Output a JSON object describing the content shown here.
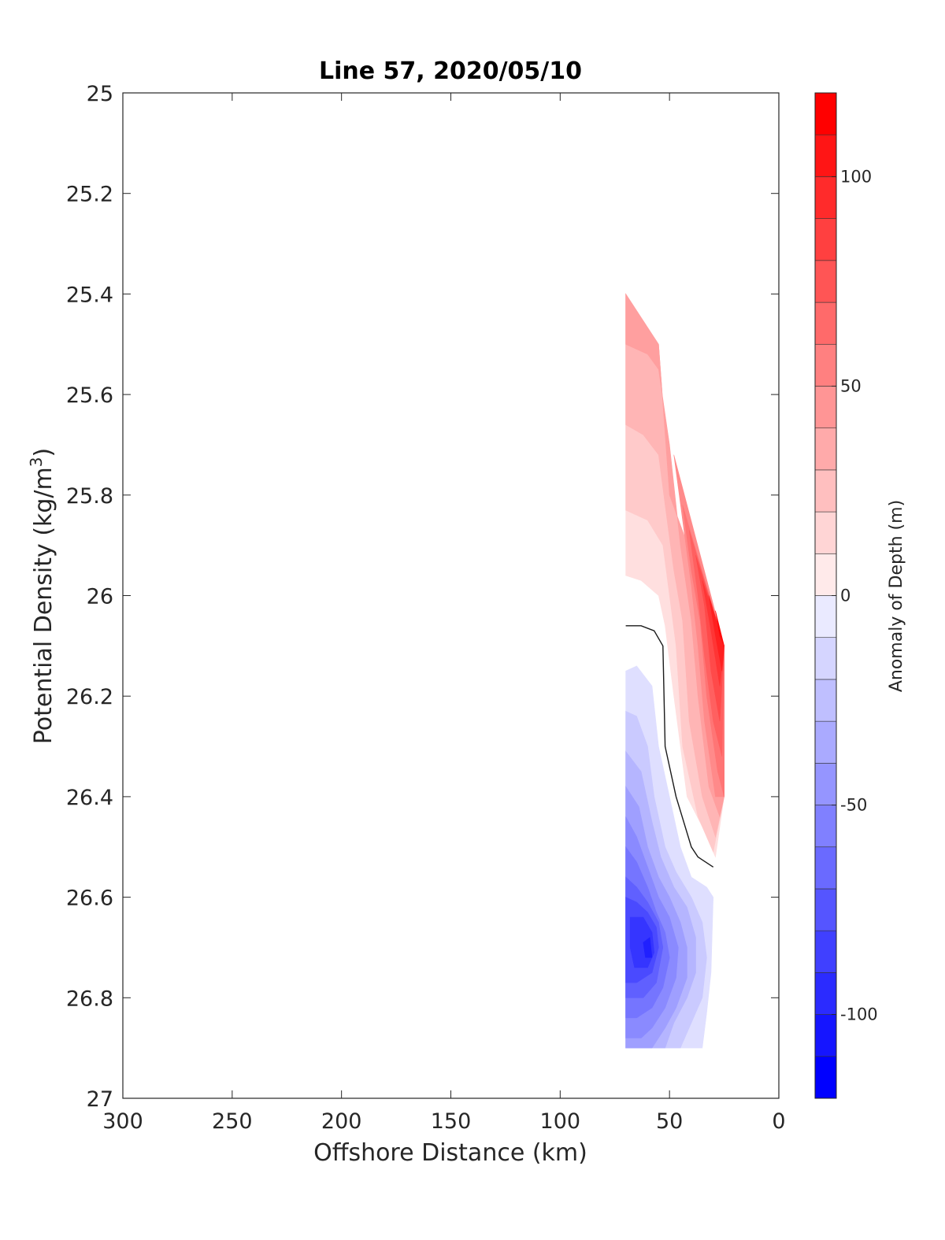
{
  "chart_data": {
    "type": "heatmap",
    "title": "Line 57, 2020/05/10",
    "xlabel": "Offshore Distance (km)",
    "ylabel_main": "Potential Density (kg/m",
    "ylabel_sup": "3",
    "ylabel_close": ")",
    "xlim": [
      300,
      0
    ],
    "ylim": [
      27,
      25
    ],
    "x_ticks": [
      300,
      250,
      200,
      150,
      100,
      50,
      0
    ],
    "x_tick_labels": [
      "300",
      "250",
      "200",
      "150",
      "100",
      "50",
      "0"
    ],
    "y_ticks": [
      25,
      25.2,
      25.4,
      25.6,
      25.8,
      26,
      26.2,
      26.4,
      26.6,
      26.8,
      27
    ],
    "y_tick_labels": [
      "25",
      "25.2",
      "25.4",
      "25.6",
      "25.8",
      "26",
      "26.2",
      "26.4",
      "26.6",
      "26.8",
      "27"
    ],
    "colorbar": {
      "label": "Anomaly of Depth (m)",
      "range": [
        -120,
        120
      ],
      "step": 10,
      "ticks": [
        100,
        50,
        0,
        -50,
        -100
      ],
      "tick_labels": [
        "100",
        "50",
        "0",
        "-50",
        "-100"
      ],
      "color_min": "#0000ff",
      "color_mid": "#ffffff",
      "color_max": "#ff0000"
    },
    "grid": false,
    "zero_contour": [
      [
        70,
        26.06
      ],
      [
        63,
        26.06
      ],
      [
        57,
        26.07
      ],
      [
        53,
        26.1
      ],
      [
        52,
        26.3
      ],
      [
        47,
        26.4
      ],
      [
        40,
        26.5
      ],
      [
        37,
        26.52
      ],
      [
        30,
        26.54
      ]
    ],
    "contour_regions": [
      {
        "value": 10,
        "points": [
          [
            70,
            25.4
          ],
          [
            70,
            25.96
          ],
          [
            63,
            25.97
          ],
          [
            55,
            26.0
          ],
          [
            52,
            26.06
          ],
          [
            48,
            26.2
          ],
          [
            42,
            26.4
          ],
          [
            35,
            26.46
          ],
          [
            29,
            26.52
          ],
          [
            25,
            26.4
          ],
          [
            25,
            26.1
          ],
          [
            50,
            25.8
          ],
          [
            55,
            25.5
          ],
          [
            70,
            25.4
          ]
        ]
      },
      {
        "value": 20,
        "points": [
          [
            70,
            25.4
          ],
          [
            70,
            25.83
          ],
          [
            60,
            25.85
          ],
          [
            53,
            25.9
          ],
          [
            50,
            26.0
          ],
          [
            47,
            26.1
          ],
          [
            44,
            26.3
          ],
          [
            37,
            26.44
          ],
          [
            30,
            26.51
          ],
          [
            25,
            26.4
          ],
          [
            25,
            26.1
          ],
          [
            50,
            25.8
          ],
          [
            55,
            25.5
          ],
          [
            70,
            25.4
          ]
        ]
      },
      {
        "value": 30,
        "points": [
          [
            70,
            25.4
          ],
          [
            70,
            25.66
          ],
          [
            62,
            25.68
          ],
          [
            55,
            25.72
          ],
          [
            52,
            25.82
          ],
          [
            48,
            25.95
          ],
          [
            44,
            26.05
          ],
          [
            41,
            26.25
          ],
          [
            35,
            26.4
          ],
          [
            29,
            26.48
          ],
          [
            25,
            26.4
          ],
          [
            25,
            26.1
          ],
          [
            50,
            25.8
          ],
          [
            55,
            25.5
          ],
          [
            70,
            25.4
          ]
        ]
      },
      {
        "value": 40,
        "points": [
          [
            70,
            25.4
          ],
          [
            70,
            25.5
          ],
          [
            60,
            25.52
          ],
          [
            55,
            25.55
          ],
          [
            50,
            25.7
          ],
          [
            45,
            25.9
          ],
          [
            40,
            26.05
          ],
          [
            37,
            26.2
          ],
          [
            32,
            26.38
          ],
          [
            27,
            26.44
          ],
          [
            25,
            26.4
          ],
          [
            25,
            26.1
          ],
          [
            50,
            25.8
          ],
          [
            55,
            25.5
          ],
          [
            70,
            25.4
          ]
        ]
      },
      {
        "value": 50,
        "points": [
          [
            48,
            25.72
          ],
          [
            44,
            25.85
          ],
          [
            40,
            25.98
          ],
          [
            37,
            26.1
          ],
          [
            34,
            26.25
          ],
          [
            29,
            26.4
          ],
          [
            25,
            26.4
          ],
          [
            25,
            26.1
          ],
          [
            48,
            25.72
          ]
        ]
      },
      {
        "value": 60,
        "points": [
          [
            44,
            25.82
          ],
          [
            40,
            25.95
          ],
          [
            36,
            26.05
          ],
          [
            33,
            26.2
          ],
          [
            28,
            26.35
          ],
          [
            25,
            26.4
          ],
          [
            25,
            26.1
          ],
          [
            44,
            25.82
          ]
        ]
      },
      {
        "value": 70,
        "points": [
          [
            41,
            25.87
          ],
          [
            37,
            26.0
          ],
          [
            34,
            26.12
          ],
          [
            30,
            26.25
          ],
          [
            26,
            26.32
          ],
          [
            25,
            26.1
          ],
          [
            41,
            25.87
          ]
        ]
      },
      {
        "value": 80,
        "points": [
          [
            38,
            25.92
          ],
          [
            34,
            26.02
          ],
          [
            31,
            26.15
          ],
          [
            27,
            26.25
          ],
          [
            25,
            26.1
          ],
          [
            38,
            25.92
          ]
        ]
      },
      {
        "value": 90,
        "points": [
          [
            35,
            25.97
          ],
          [
            31,
            26.07
          ],
          [
            27,
            26.18
          ],
          [
            25,
            26.1
          ],
          [
            35,
            25.97
          ]
        ]
      },
      {
        "value": 100,
        "points": [
          [
            32,
            26.0
          ],
          [
            29,
            26.08
          ],
          [
            26,
            26.15
          ],
          [
            25,
            26.1
          ],
          [
            32,
            26.0
          ]
        ]
      },
      {
        "value": 110,
        "points": [
          [
            29,
            26.03
          ],
          [
            27,
            26.08
          ],
          [
            25,
            26.1
          ],
          [
            29,
            26.03
          ]
        ]
      },
      {
        "value": -10,
        "points": [
          [
            70,
            26.15
          ],
          [
            65,
            26.14
          ],
          [
            58,
            26.18
          ],
          [
            55,
            26.3
          ],
          [
            50,
            26.4
          ],
          [
            45,
            26.5
          ],
          [
            40,
            26.56
          ],
          [
            33,
            26.58
          ],
          [
            30,
            26.6
          ],
          [
            31,
            26.75
          ],
          [
            33,
            26.83
          ],
          [
            35,
            26.9
          ],
          [
            70,
            26.9
          ],
          [
            70,
            26.15
          ]
        ]
      },
      {
        "value": -20,
        "points": [
          [
            70,
            26.23
          ],
          [
            65,
            26.24
          ],
          [
            60,
            26.3
          ],
          [
            57,
            26.4
          ],
          [
            52,
            26.5
          ],
          [
            47,
            26.55
          ],
          [
            40,
            26.6
          ],
          [
            35,
            26.65
          ],
          [
            33,
            26.72
          ],
          [
            35,
            26.8
          ],
          [
            40,
            26.85
          ],
          [
            45,
            26.9
          ],
          [
            70,
            26.9
          ],
          [
            70,
            26.23
          ]
        ]
      },
      {
        "value": -30,
        "points": [
          [
            70,
            26.31
          ],
          [
            63,
            26.35
          ],
          [
            58,
            26.45
          ],
          [
            54,
            26.52
          ],
          [
            48,
            26.58
          ],
          [
            42,
            26.62
          ],
          [
            38,
            26.68
          ],
          [
            38,
            26.75
          ],
          [
            42,
            26.8
          ],
          [
            48,
            26.85
          ],
          [
            52,
            26.9
          ],
          [
            70,
            26.9
          ],
          [
            70,
            26.31
          ]
        ]
      },
      {
        "value": -40,
        "points": [
          [
            70,
            26.38
          ],
          [
            64,
            26.42
          ],
          [
            60,
            26.5
          ],
          [
            55,
            26.56
          ],
          [
            50,
            26.6
          ],
          [
            45,
            26.65
          ],
          [
            42,
            26.7
          ],
          [
            42,
            26.76
          ],
          [
            47,
            26.82
          ],
          [
            52,
            26.86
          ],
          [
            58,
            26.9
          ],
          [
            70,
            26.9
          ],
          [
            70,
            26.38
          ]
        ]
      },
      {
        "value": -50,
        "points": [
          [
            70,
            26.44
          ],
          [
            65,
            26.48
          ],
          [
            60,
            26.54
          ],
          [
            55,
            26.6
          ],
          [
            50,
            26.64
          ],
          [
            46,
            26.7
          ],
          [
            47,
            26.76
          ],
          [
            52,
            26.82
          ],
          [
            58,
            26.86
          ],
          [
            63,
            26.88
          ],
          [
            70,
            26.88
          ],
          [
            70,
            26.44
          ]
        ]
      },
      {
        "value": -60,
        "points": [
          [
            70,
            26.5
          ],
          [
            65,
            26.53
          ],
          [
            60,
            26.58
          ],
          [
            56,
            26.63
          ],
          [
            52,
            26.67
          ],
          [
            50,
            26.72
          ],
          [
            53,
            26.78
          ],
          [
            58,
            26.82
          ],
          [
            65,
            26.84
          ],
          [
            70,
            26.84
          ],
          [
            70,
            26.5
          ]
        ]
      },
      {
        "value": -70,
        "points": [
          [
            70,
            26.56
          ],
          [
            65,
            26.58
          ],
          [
            60,
            26.61
          ],
          [
            55,
            26.65
          ],
          [
            53,
            26.7
          ],
          [
            56,
            26.77
          ],
          [
            62,
            26.8
          ],
          [
            70,
            26.8
          ],
          [
            70,
            26.56
          ]
        ]
      },
      {
        "value": -80,
        "points": [
          [
            70,
            26.6
          ],
          [
            65,
            26.61
          ],
          [
            60,
            26.63
          ],
          [
            56,
            26.66
          ],
          [
            55,
            26.7
          ],
          [
            58,
            26.75
          ],
          [
            65,
            26.77
          ],
          [
            70,
            26.77
          ],
          [
            70,
            26.6
          ]
        ]
      },
      {
        "value": -90,
        "points": [
          [
            68,
            26.64
          ],
          [
            62,
            26.64
          ],
          [
            58,
            26.67
          ],
          [
            57,
            26.71
          ],
          [
            60,
            26.74
          ],
          [
            66,
            26.74
          ],
          [
            68,
            26.7
          ],
          [
            68,
            26.64
          ]
        ]
      },
      {
        "value": -100,
        "points": [
          [
            62,
            26.69
          ],
          [
            59,
            26.68
          ],
          [
            58,
            26.72
          ],
          [
            61,
            26.72
          ],
          [
            62,
            26.69
          ]
        ]
      }
    ]
  }
}
